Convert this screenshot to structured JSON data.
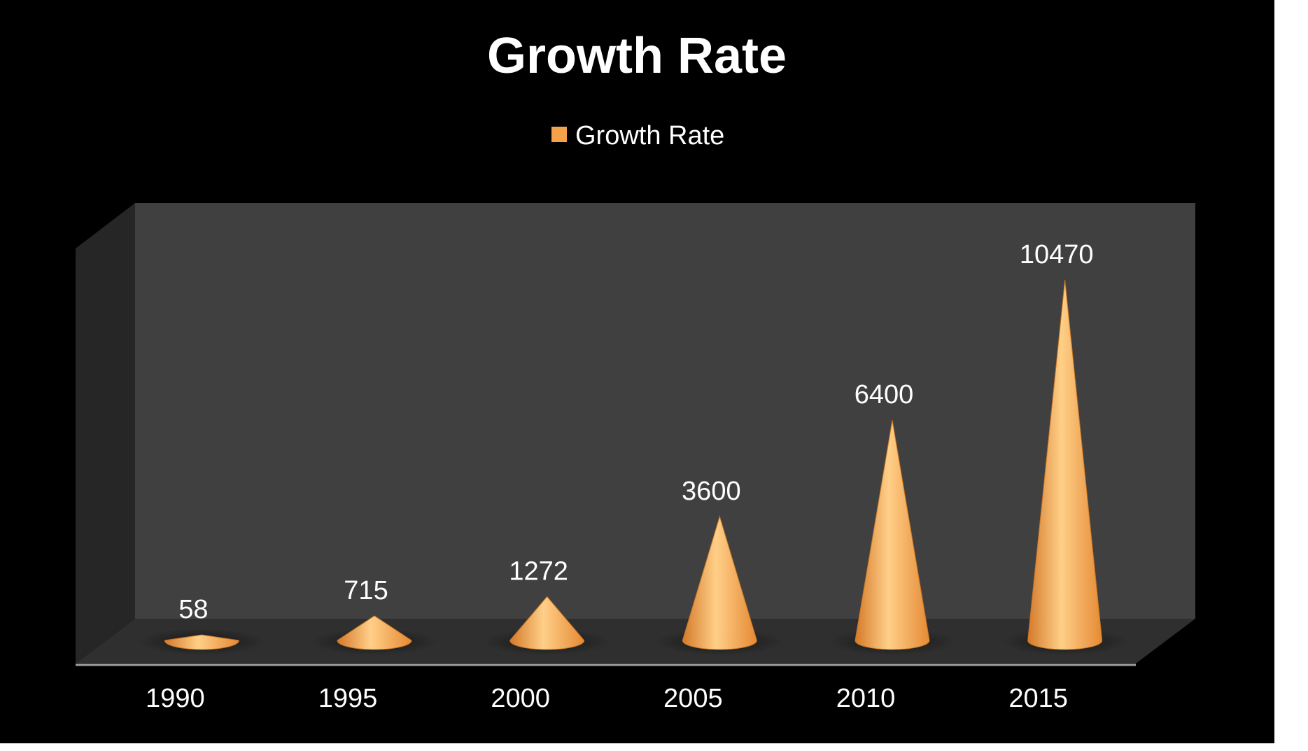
{
  "chart_data": {
    "type": "bar",
    "bar_shape": "cone-3d",
    "title": "Growth Rate",
    "categories": [
      "1990",
      "1995",
      "2000",
      "2005",
      "2010",
      "2015"
    ],
    "series": [
      {
        "name": "Growth Rate",
        "values": [
          58,
          715,
          1272,
          3600,
          6400,
          10470
        ]
      }
    ],
    "data_labels": true,
    "legend": {
      "placement": "top-center"
    },
    "grid": false,
    "ylim": [
      0,
      12000
    ],
    "colors": {
      "background": "#000000",
      "back_wall": "#404040",
      "side_wall": "#262626",
      "floor": "#2e2e2e",
      "cone": "#f5a04a",
      "cone_highlight": "#ffd08a",
      "cone_shadow": "#d9822e",
      "text": "#ffffff"
    }
  }
}
